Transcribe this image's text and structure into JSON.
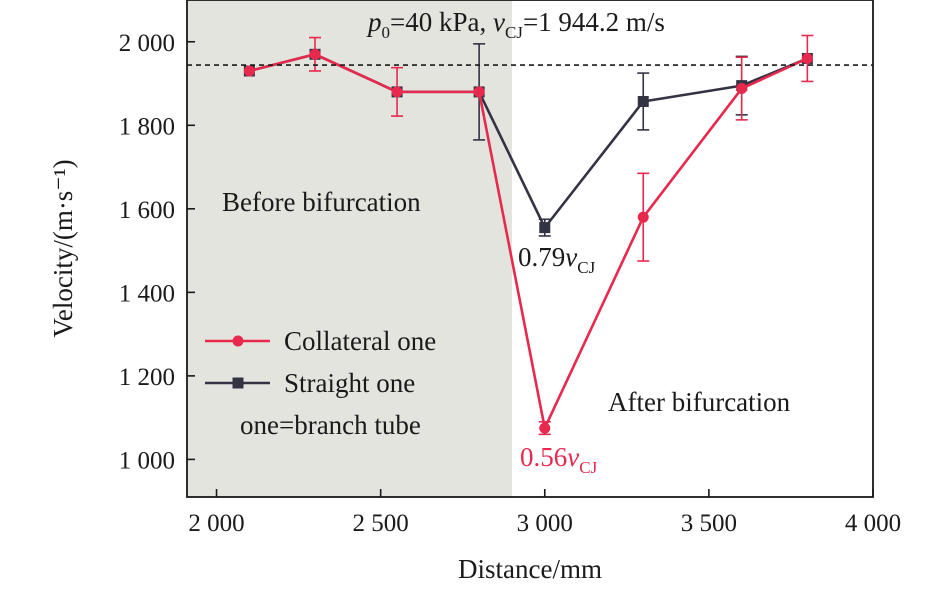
{
  "chart_data": {
    "type": "line",
    "title": "",
    "xlabel": "Distance/mm",
    "ylabel": "Velocity/(m·s⁻¹)",
    "xlim": [
      1910,
      4000
    ],
    "ylim": [
      910,
      2100
    ],
    "x_ticks": [
      2000,
      2500,
      3000,
      3500,
      4000
    ],
    "x_tick_labels": [
      "2 000",
      "2 500",
      "3 000",
      "3 500",
      "4 000"
    ],
    "y_ticks": [
      1000,
      1200,
      1400,
      1600,
      1800,
      2000
    ],
    "y_tick_labels": [
      "1 000",
      "1 200",
      "1 400",
      "1 600",
      "1 800",
      "2 000"
    ],
    "grid": false,
    "legend_position": "lower-left",
    "reference_line": {
      "y": 1944.2,
      "style": "dashed"
    },
    "shaded_region": {
      "x_from": 1910,
      "x_to": 2900,
      "color": "#e4e4df"
    },
    "series": [
      {
        "name": "Collateral one",
        "color": "#e8294e",
        "marker": "circle",
        "x": [
          2100,
          2300,
          2550,
          2800,
          3000,
          3300,
          3600,
          3800
        ],
        "y": [
          1930,
          1970,
          1880,
          1880,
          1075,
          1580,
          1888,
          1960
        ],
        "err": [
          0,
          40,
          58,
          0,
          15,
          105,
          75,
          55
        ]
      },
      {
        "name": "Straight one",
        "color": "#333344",
        "marker": "square",
        "x": [
          2100,
          2300,
          2550,
          2800,
          3000,
          3300,
          3600,
          3800
        ],
        "y": [
          1930,
          1970,
          1880,
          1880,
          1555,
          1857,
          1895,
          1960
        ],
        "err": [
          0,
          0,
          0,
          115,
          20,
          68,
          70,
          0
        ]
      }
    ],
    "annotations": {
      "header": {
        "p_sym": "p",
        "p_sub": "0",
        "p_rest": "=40 kPa, ",
        "v_sym": "v",
        "v_sub": "CJ",
        "v_rest": "=1 944.2 m/s"
      },
      "before": "Before bifurcation",
      "after": "After bifurcation",
      "straight_ratio": {
        "num": "0.79",
        "sym": "v",
        "sub": "CJ"
      },
      "collateral_ratio": {
        "num": "0.56",
        "sym": "v",
        "sub": "CJ"
      },
      "legend_note": "one=branch tube"
    }
  }
}
